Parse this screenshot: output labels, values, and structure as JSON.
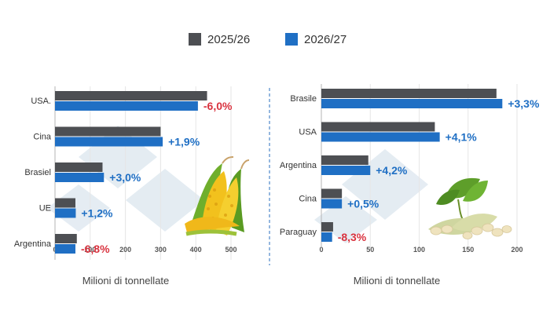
{
  "legend": [
    {
      "label": "2025/26",
      "color": "#4d4f53"
    },
    {
      "label": "2026/27",
      "color": "#1f6fc4"
    }
  ],
  "colors": {
    "positive": "#1f6fc4",
    "negative": "#d9333f",
    "axis": "#555555",
    "grid": "#e6e6e6",
    "divider": "#2a6fbf"
  },
  "chart_data": [
    {
      "type": "bar",
      "orientation": "horizontal",
      "icon": "corn-icon",
      "categories": [
        "USA.",
        "Cina",
        "Brasiel",
        "UE",
        "Argentina"
      ],
      "series": [
        {
          "name": "2025/26",
          "values": [
            432,
            300,
            135,
            58,
            62
          ]
        },
        {
          "name": "2026/27",
          "values": [
            406,
            306,
            139,
            59,
            58
          ]
        }
      ],
      "annotations": [
        "-6,0%",
        "+1,9%",
        "+3,0%",
        "+1,2%",
        "-6,8%"
      ],
      "xlim": [
        0,
        500
      ],
      "xticks": [
        "0",
        "100",
        "200",
        "300",
        "400",
        "500"
      ],
      "xlabel": "Milioni di tonnellate",
      "grid": true
    },
    {
      "type": "bar",
      "orientation": "horizontal",
      "icon": "soybean-icon",
      "categories": [
        "Brasile",
        "USA",
        "Argentina",
        "Cina",
        "Paraguay"
      ],
      "series": [
        {
          "name": "2025/26",
          "values": [
            179,
            116,
            48,
            21,
            12
          ]
        },
        {
          "name": "2026/27",
          "values": [
            185,
            121,
            50,
            21,
            11
          ]
        }
      ],
      "annotations": [
        "+3,3%",
        "+4,1%",
        "+4,2%",
        "+0,5%",
        "-8,3%"
      ],
      "xlim": [
        0,
        200
      ],
      "xticks": [
        "0",
        "50",
        "100",
        "150",
        "200"
      ],
      "xlabel": "Milioni di tonnellate",
      "grid": true
    }
  ]
}
